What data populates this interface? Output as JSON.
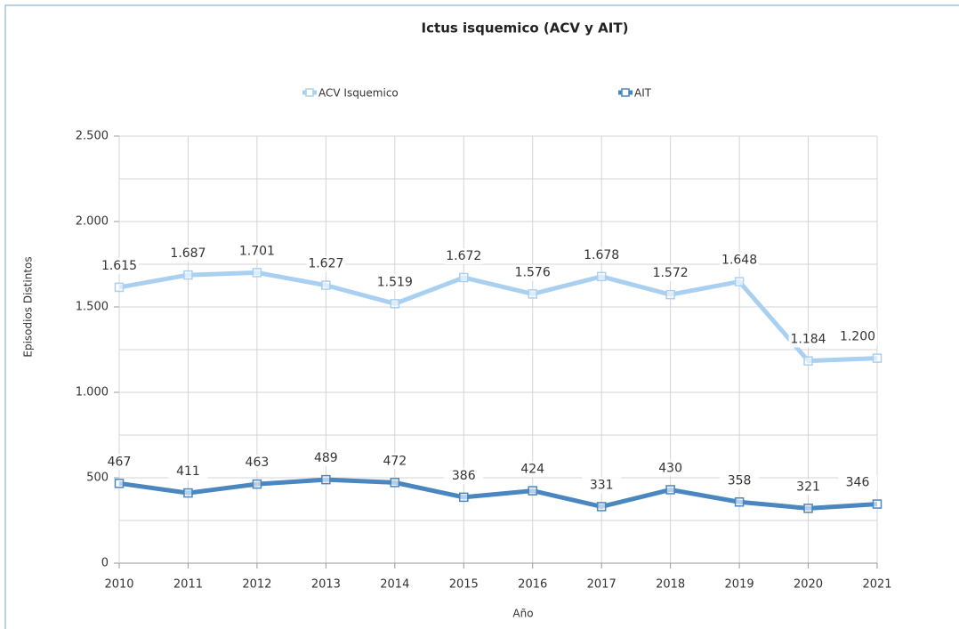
{
  "chart_data": {
    "type": "line",
    "title": "Ictus isquemico (ACV y AIT)",
    "x_label": "Año",
    "y_label": "Episodios Distintos",
    "categories": [
      "2010",
      "2011",
      "2012",
      "2013",
      "2014",
      "2015",
      "2016",
      "2017",
      "2018",
      "2019",
      "2020",
      "2021"
    ],
    "series": [
      {
        "name": "ACV Isquemico",
        "color": "#a9d0f0",
        "values": [
          1615,
          1687,
          1701,
          1627,
          1519,
          1672,
          1576,
          1678,
          1572,
          1648,
          1184,
          1200
        ],
        "value_labels": [
          "1.615",
          "1.687",
          "1.701",
          "1.627",
          "1.519",
          "1.672",
          "1.576",
          "1.678",
          "1.572",
          "1.648",
          "1.184",
          "1.200"
        ]
      },
      {
        "name": "AIT",
        "color": "#4a86c0",
        "values": [
          467,
          411,
          463,
          489,
          472,
          386,
          424,
          331,
          430,
          358,
          321,
          346
        ]
      }
    ],
    "ylim": [
      0,
      2500
    ],
    "yticks": [
      0,
      500,
      {
        "value": 1000,
        "label": "1.000"
      },
      {
        "value": 1500,
        "label": "1.500"
      },
      {
        "value": 2000,
        "label": "2.000"
      },
      {
        "value": 2500,
        "label": "2.500"
      }
    ],
    "yminor": [
      250,
      750,
      1250,
      1750,
      2250
    ],
    "grid": true,
    "legend": "top"
  }
}
